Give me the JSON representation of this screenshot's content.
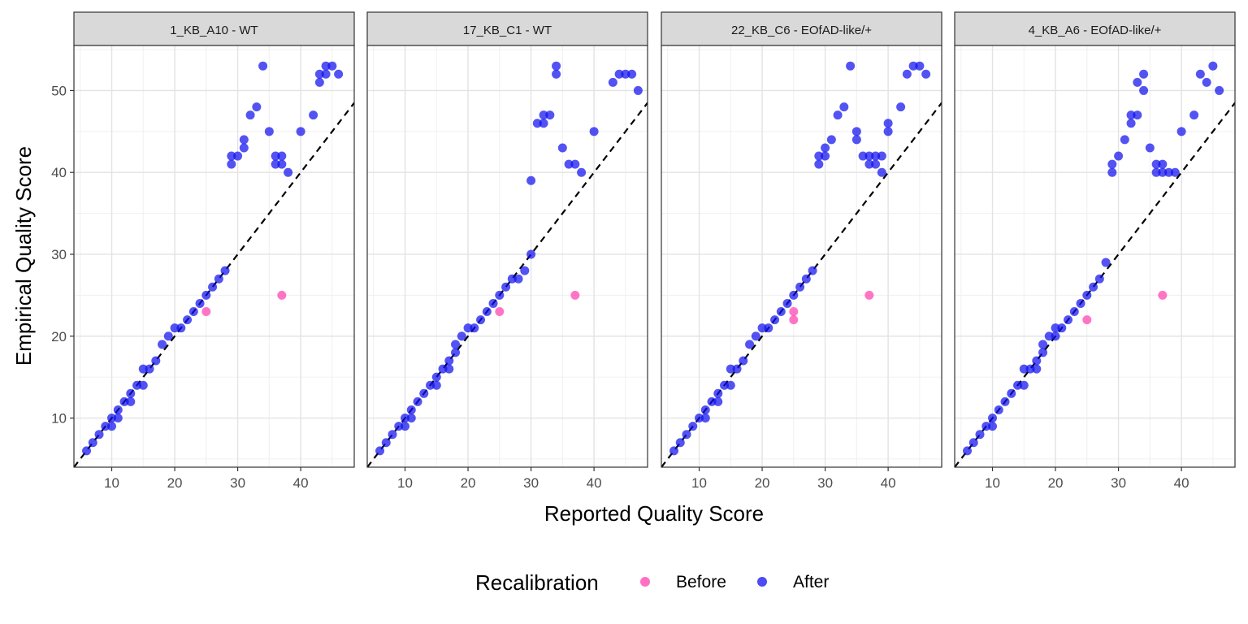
{
  "chart_data": {
    "type": "scatter",
    "xlabel": "Reported Quality Score",
    "ylabel": "Empirical Quality Score",
    "xlim": [
      4,
      48.5
    ],
    "ylim": [
      4,
      55.5
    ],
    "x_ticks": [
      10,
      20,
      30,
      40
    ],
    "y_ticks": [
      10,
      20,
      30,
      40,
      50
    ],
    "grid": true,
    "reference_line": "y = x (dashed)",
    "legend": {
      "title": "Recalibration",
      "placement": "bottom",
      "entries": [
        {
          "label": "Before",
          "color": "#ff40b0"
        },
        {
          "label": "After",
          "color": "#1010ee"
        }
      ]
    },
    "facets": [
      {
        "label": "1_KB_A10 - WT",
        "series": [
          {
            "name": "Before",
            "points": [
              [
                25,
                23
              ],
              [
                37,
                25
              ]
            ]
          },
          {
            "name": "After",
            "points": [
              [
                6,
                6
              ],
              [
                7,
                7
              ],
              [
                8,
                8
              ],
              [
                9,
                9
              ],
              [
                10,
                9
              ],
              [
                10,
                10
              ],
              [
                11,
                10
              ],
              [
                11,
                11
              ],
              [
                12,
                12
              ],
              [
                13,
                12
              ],
              [
                13,
                13
              ],
              [
                14,
                14
              ],
              [
                15,
                14
              ],
              [
                15,
                16
              ],
              [
                16,
                16
              ],
              [
                17,
                17
              ],
              [
                18,
                19
              ],
              [
                19,
                20
              ],
              [
                20,
                21
              ],
              [
                21,
                21
              ],
              [
                22,
                22
              ],
              [
                23,
                23
              ],
              [
                24,
                24
              ],
              [
                25,
                25
              ],
              [
                26,
                26
              ],
              [
                27,
                27
              ],
              [
                28,
                28
              ],
              [
                29,
                41
              ],
              [
                29,
                42
              ],
              [
                30,
                42
              ],
              [
                31,
                43
              ],
              [
                31,
                44
              ],
              [
                32,
                47
              ],
              [
                33,
                48
              ],
              [
                34,
                53
              ],
              [
                35,
                45
              ],
              [
                36,
                41
              ],
              [
                36,
                42
              ],
              [
                37,
                41
              ],
              [
                37,
                42
              ],
              [
                38,
                40
              ],
              [
                40,
                45
              ],
              [
                42,
                47
              ],
              [
                43,
                51
              ],
              [
                43,
                52
              ],
              [
                44,
                52
              ],
              [
                44,
                53
              ],
              [
                45,
                53
              ],
              [
                46,
                52
              ]
            ]
          }
        ]
      },
      {
        "label": "17_KB_C1 - WT",
        "series": [
          {
            "name": "Before",
            "points": [
              [
                25,
                23
              ],
              [
                37,
                25
              ]
            ]
          },
          {
            "name": "After",
            "points": [
              [
                6,
                6
              ],
              [
                7,
                7
              ],
              [
                8,
                8
              ],
              [
                9,
                9
              ],
              [
                10,
                9
              ],
              [
                10,
                10
              ],
              [
                11,
                10
              ],
              [
                11,
                11
              ],
              [
                12,
                12
              ],
              [
                13,
                13
              ],
              [
                14,
                14
              ],
              [
                15,
                14
              ],
              [
                15,
                15
              ],
              [
                16,
                16
              ],
              [
                17,
                16
              ],
              [
                17,
                17
              ],
              [
                18,
                18
              ],
              [
                18,
                19
              ],
              [
                19,
                20
              ],
              [
                20,
                21
              ],
              [
                21,
                21
              ],
              [
                22,
                22
              ],
              [
                23,
                23
              ],
              [
                24,
                24
              ],
              [
                25,
                25
              ],
              [
                26,
                26
              ],
              [
                27,
                27
              ],
              [
                28,
                27
              ],
              [
                29,
                28
              ],
              [
                30,
                30
              ],
              [
                30,
                39
              ],
              [
                31,
                46
              ],
              [
                32,
                46
              ],
              [
                32,
                47
              ],
              [
                33,
                47
              ],
              [
                34,
                52
              ],
              [
                34,
                53
              ],
              [
                35,
                43
              ],
              [
                36,
                41
              ],
              [
                37,
                41
              ],
              [
                38,
                40
              ],
              [
                40,
                45
              ],
              [
                43,
                51
              ],
              [
                44,
                52
              ],
              [
                45,
                52
              ],
              [
                46,
                52
              ],
              [
                47,
                50
              ]
            ]
          }
        ]
      },
      {
        "label": "22_KB_C6 - EOfAD-like/+",
        "series": [
          {
            "name": "Before",
            "points": [
              [
                25,
                23
              ],
              [
                25,
                22
              ],
              [
                37,
                25
              ]
            ]
          },
          {
            "name": "After",
            "points": [
              [
                6,
                6
              ],
              [
                7,
                7
              ],
              [
                8,
                8
              ],
              [
                9,
                9
              ],
              [
                10,
                10
              ],
              [
                11,
                10
              ],
              [
                11,
                11
              ],
              [
                12,
                12
              ],
              [
                13,
                12
              ],
              [
                13,
                13
              ],
              [
                14,
                14
              ],
              [
                15,
                14
              ],
              [
                15,
                16
              ],
              [
                16,
                16
              ],
              [
                17,
                17
              ],
              [
                18,
                19
              ],
              [
                19,
                20
              ],
              [
                20,
                21
              ],
              [
                21,
                21
              ],
              [
                22,
                22
              ],
              [
                23,
                23
              ],
              [
                24,
                24
              ],
              [
                25,
                25
              ],
              [
                26,
                26
              ],
              [
                27,
                27
              ],
              [
                28,
                28
              ],
              [
                29,
                41
              ],
              [
                29,
                42
              ],
              [
                30,
                42
              ],
              [
                30,
                43
              ],
              [
                31,
                44
              ],
              [
                32,
                47
              ],
              [
                33,
                48
              ],
              [
                34,
                53
              ],
              [
                35,
                44
              ],
              [
                35,
                45
              ],
              [
                36,
                42
              ],
              [
                37,
                41
              ],
              [
                37,
                42
              ],
              [
                38,
                41
              ],
              [
                38,
                42
              ],
              [
                39,
                40
              ],
              [
                39,
                42
              ],
              [
                40,
                45
              ],
              [
                40,
                46
              ],
              [
                42,
                48
              ],
              [
                43,
                52
              ],
              [
                44,
                53
              ],
              [
                45,
                53
              ],
              [
                46,
                52
              ]
            ]
          }
        ]
      },
      {
        "label": "4_KB_A6 - EOfAD-like/+",
        "series": [
          {
            "name": "Before",
            "points": [
              [
                25,
                22
              ],
              [
                37,
                25
              ]
            ]
          },
          {
            "name": "After",
            "points": [
              [
                6,
                6
              ],
              [
                7,
                7
              ],
              [
                8,
                8
              ],
              [
                9,
                9
              ],
              [
                10,
                9
              ],
              [
                10,
                10
              ],
              [
                11,
                11
              ],
              [
                12,
                12
              ],
              [
                13,
                13
              ],
              [
                14,
                14
              ],
              [
                15,
                14
              ],
              [
                15,
                16
              ],
              [
                16,
                16
              ],
              [
                17,
                16
              ],
              [
                17,
                17
              ],
              [
                18,
                18
              ],
              [
                18,
                19
              ],
              [
                19,
                20
              ],
              [
                20,
                20
              ],
              [
                20,
                21
              ],
              [
                21,
                21
              ],
              [
                22,
                22
              ],
              [
                23,
                23
              ],
              [
                24,
                24
              ],
              [
                25,
                25
              ],
              [
                26,
                26
              ],
              [
                27,
                27
              ],
              [
                28,
                29
              ],
              [
                29,
                40
              ],
              [
                29,
                41
              ],
              [
                30,
                42
              ],
              [
                31,
                44
              ],
              [
                32,
                46
              ],
              [
                32,
                47
              ],
              [
                33,
                47
              ],
              [
                33,
                51
              ],
              [
                34,
                50
              ],
              [
                34,
                52
              ],
              [
                35,
                43
              ],
              [
                36,
                40
              ],
              [
                36,
                41
              ],
              [
                37,
                40
              ],
              [
                37,
                41
              ],
              [
                38,
                40
              ],
              [
                39,
                40
              ],
              [
                40,
                45
              ],
              [
                42,
                47
              ],
              [
                43,
                52
              ],
              [
                44,
                51
              ],
              [
                45,
                53
              ],
              [
                46,
                50
              ]
            ]
          }
        ]
      }
    ]
  }
}
